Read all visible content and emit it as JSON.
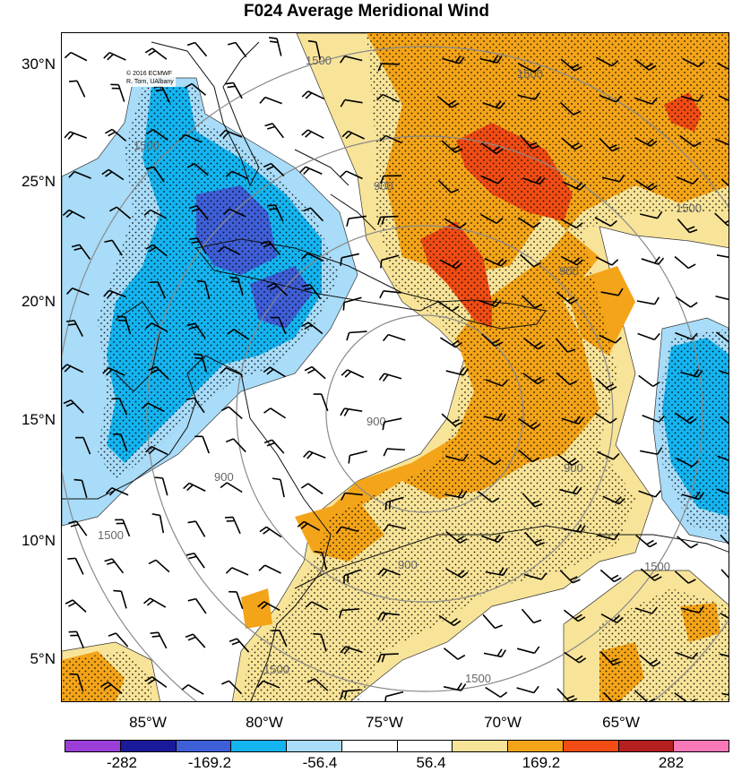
{
  "title": "F024 Average Meridional Wind",
  "credit": {
    "line1": "© 2016 ECMWF",
    "line2": "R. Torn, UAlbany"
  },
  "latitude_labels": [
    "30°N",
    "25°N",
    "20°N",
    "15°N",
    "10°N",
    "5°N"
  ],
  "longitude_labels": [
    "85°W",
    "80°W",
    "75°W",
    "70°W",
    "65°W"
  ],
  "contour_labels": {
    "inner": "900",
    "outer": "1500"
  },
  "colorbar": {
    "colors": [
      "#9b3fd8",
      "#1a1a9a",
      "#3f5fd8",
      "#14b4f0",
      "#a8dcf8",
      "#ffffff",
      "#ffffff",
      "#f8e498",
      "#f4a418",
      "#f04c14",
      "#b42020",
      "#f878b8"
    ],
    "tick_labels": [
      "-282",
      "-169.2",
      "-56.4",
      "56.4",
      "169.2",
      "282"
    ]
  }
}
